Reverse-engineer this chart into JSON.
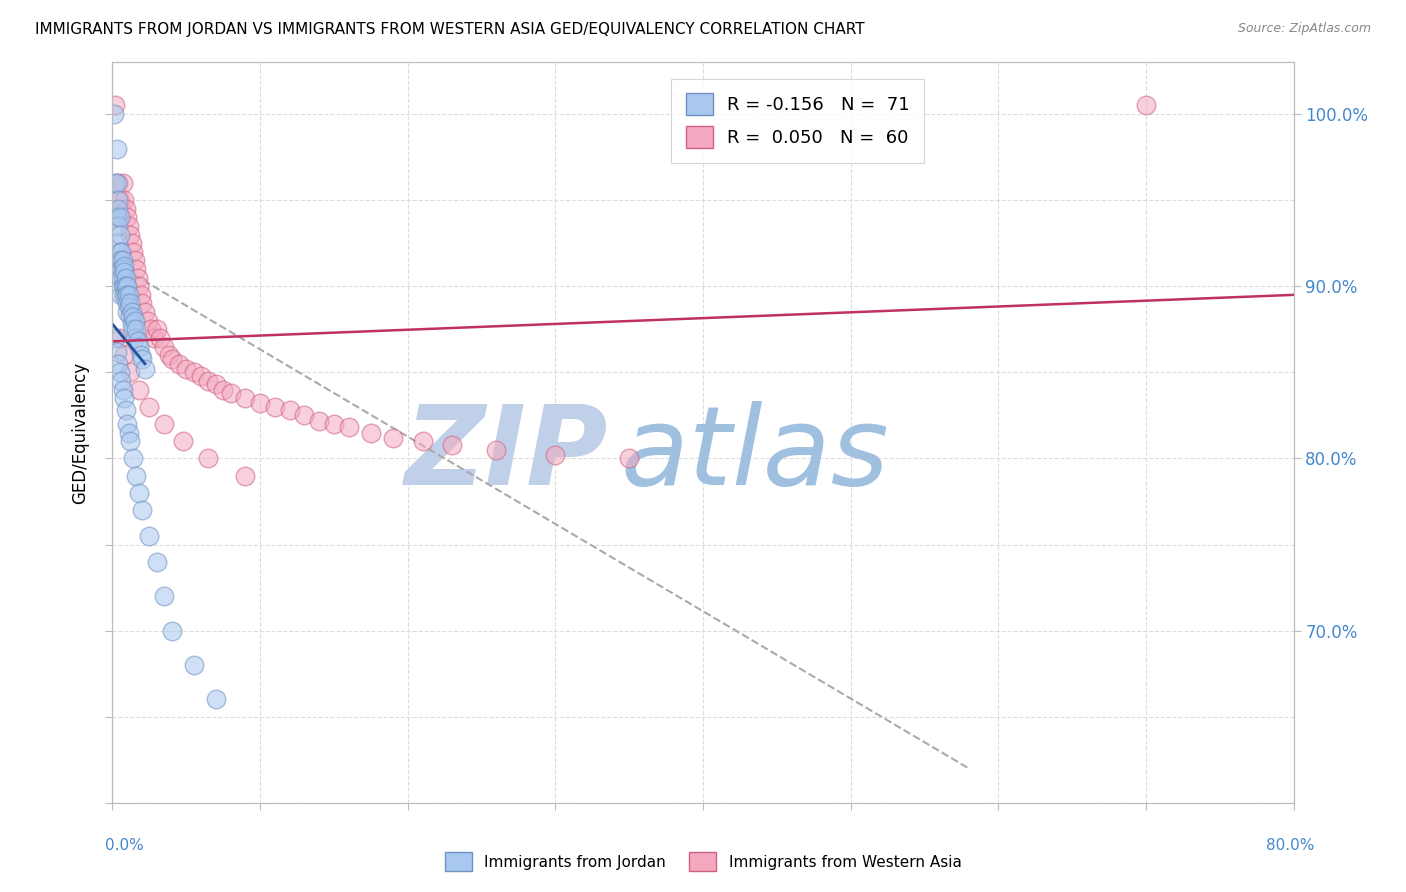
{
  "title": "IMMIGRANTS FROM JORDAN VS IMMIGRANTS FROM WESTERN ASIA GED/EQUIVALENCY CORRELATION CHART",
  "source": "Source: ZipAtlas.com",
  "ylabel": "GED/Equivalency",
  "right_yticks": [
    1.0,
    0.9,
    0.8,
    0.7
  ],
  "right_yticklabels": [
    "100.0%",
    "90.0%",
    "80.0%",
    "70.0%"
  ],
  "xlim": [
    0.0,
    0.8
  ],
  "ylim": [
    0.6,
    1.03
  ],
  "blue_color": "#A8C8F0",
  "pink_color": "#F4A8C0",
  "blue_edge": "#7090C0",
  "pink_edge": "#D06080",
  "trendline_blue": "#2050A0",
  "trendline_pink": "#C03060",
  "dashed_color": "#AAAAAA",
  "watermark_zip_color": "#C0D0E8",
  "watermark_atlas_color": "#A0C0E0",
  "jordan_x": [
    0.001,
    0.002,
    0.002,
    0.003,
    0.003,
    0.003,
    0.004,
    0.004,
    0.004,
    0.004,
    0.005,
    0.005,
    0.005,
    0.005,
    0.006,
    0.006,
    0.006,
    0.006,
    0.006,
    0.007,
    0.007,
    0.007,
    0.007,
    0.008,
    0.008,
    0.008,
    0.008,
    0.009,
    0.009,
    0.009,
    0.01,
    0.01,
    0.01,
    0.01,
    0.011,
    0.011,
    0.012,
    0.012,
    0.013,
    0.013,
    0.014,
    0.014,
    0.015,
    0.015,
    0.016,
    0.017,
    0.018,
    0.019,
    0.02,
    0.022,
    0.002,
    0.003,
    0.004,
    0.005,
    0.006,
    0.007,
    0.008,
    0.009,
    0.01,
    0.011,
    0.012,
    0.014,
    0.016,
    0.018,
    0.02,
    0.025,
    0.03,
    0.035,
    0.04,
    0.055,
    0.07
  ],
  "jordan_y": [
    1.0,
    0.96,
    0.94,
    0.98,
    0.96,
    0.94,
    0.95,
    0.945,
    0.935,
    0.925,
    0.94,
    0.93,
    0.92,
    0.915,
    0.92,
    0.915,
    0.91,
    0.905,
    0.895,
    0.915,
    0.91,
    0.905,
    0.9,
    0.912,
    0.908,
    0.9,
    0.895,
    0.905,
    0.9,
    0.895,
    0.9,
    0.895,
    0.89,
    0.885,
    0.895,
    0.888,
    0.89,
    0.883,
    0.885,
    0.878,
    0.882,
    0.875,
    0.88,
    0.87,
    0.875,
    0.868,
    0.865,
    0.86,
    0.858,
    0.852,
    0.87,
    0.862,
    0.855,
    0.85,
    0.845,
    0.84,
    0.835,
    0.828,
    0.82,
    0.815,
    0.81,
    0.8,
    0.79,
    0.78,
    0.77,
    0.755,
    0.74,
    0.72,
    0.7,
    0.68,
    0.66
  ],
  "western_x": [
    0.002,
    0.004,
    0.005,
    0.006,
    0.007,
    0.008,
    0.009,
    0.01,
    0.011,
    0.012,
    0.013,
    0.014,
    0.015,
    0.016,
    0.017,
    0.018,
    0.019,
    0.02,
    0.022,
    0.024,
    0.026,
    0.028,
    0.03,
    0.032,
    0.035,
    0.038,
    0.04,
    0.045,
    0.05,
    0.055,
    0.06,
    0.065,
    0.07,
    0.075,
    0.08,
    0.09,
    0.1,
    0.11,
    0.12,
    0.13,
    0.14,
    0.15,
    0.16,
    0.175,
    0.19,
    0.21,
    0.23,
    0.26,
    0.3,
    0.35,
    0.005,
    0.008,
    0.012,
    0.018,
    0.025,
    0.035,
    0.048,
    0.065,
    0.09,
    0.7
  ],
  "western_y": [
    1.005,
    0.96,
    0.95,
    0.94,
    0.96,
    0.95,
    0.945,
    0.94,
    0.935,
    0.93,
    0.925,
    0.92,
    0.915,
    0.91,
    0.905,
    0.9,
    0.895,
    0.89,
    0.885,
    0.88,
    0.875,
    0.87,
    0.875,
    0.87,
    0.865,
    0.86,
    0.858,
    0.855,
    0.852,
    0.85,
    0.848,
    0.845,
    0.843,
    0.84,
    0.838,
    0.835,
    0.832,
    0.83,
    0.828,
    0.825,
    0.822,
    0.82,
    0.818,
    0.815,
    0.812,
    0.81,
    0.808,
    0.805,
    0.802,
    0.8,
    0.87,
    0.86,
    0.85,
    0.84,
    0.83,
    0.82,
    0.81,
    0.8,
    0.79,
    1.005
  ],
  "blue_trendline": [
    [
      0.0,
      0.022
    ],
    [
      0.878,
      0.855
    ]
  ],
  "pink_trendline": [
    [
      0.0,
      0.8
    ],
    [
      0.868,
      0.895
    ]
  ],
  "dashed_line": [
    [
      0.008,
      0.58
    ],
    [
      0.91,
      0.62
    ]
  ]
}
